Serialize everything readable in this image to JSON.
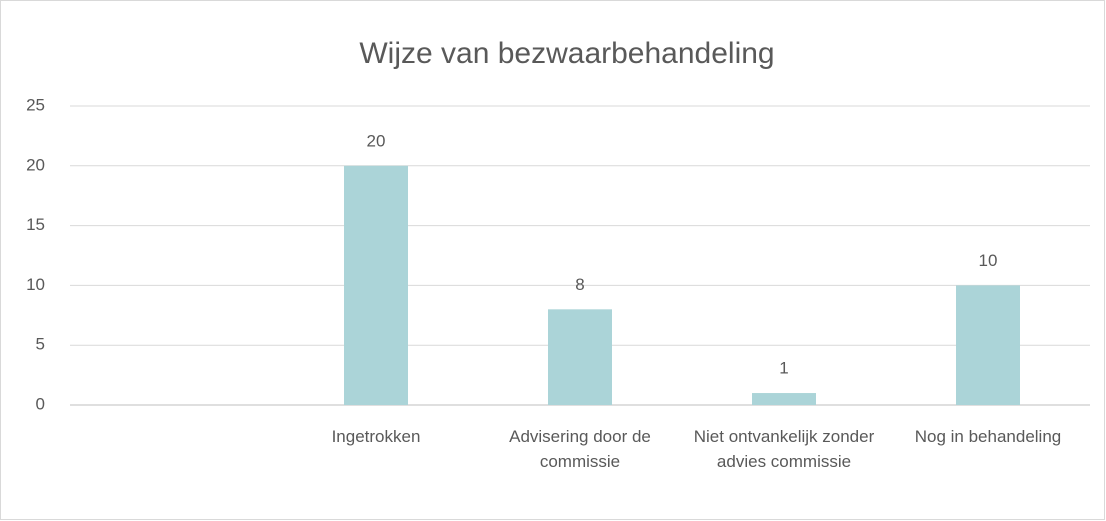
{
  "chart_data": {
    "type": "bar",
    "title": "Wijze van bezwaarbehandeling",
    "categories": [
      null,
      "Ingetrokken",
      "Advisering door de commissie",
      "Niet ontvankelijk zonder advies commissie",
      "Nog in behandeling"
    ],
    "values": [
      null,
      20,
      8,
      1,
      10
    ],
    "color": "#abd4d8",
    "ylim": [
      0,
      25
    ],
    "yticks": [
      0,
      5,
      10,
      15,
      20,
      25
    ],
    "grid": true
  }
}
